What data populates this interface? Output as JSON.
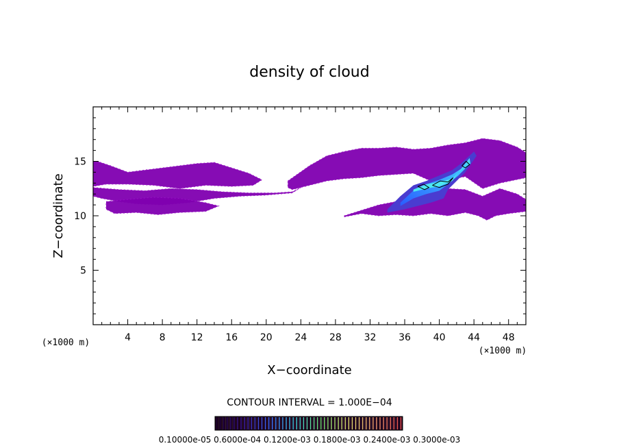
{
  "chart_data": {
    "type": "heatmap",
    "title": "density of cloud",
    "xlabel": "X−coordinate",
    "ylabel": "Z−coordinate",
    "x_unit_left": "(×1000 m)",
    "x_unit_right": "(×1000 m)",
    "xlim": [
      0,
      50
    ],
    "ylim": [
      0,
      20
    ],
    "x_ticks": [
      4,
      8,
      12,
      16,
      20,
      24,
      28,
      32,
      36,
      40,
      44,
      48
    ],
    "x_tick_labels": [
      "4",
      "8",
      "12",
      "16",
      "20",
      "24",
      "28",
      "32",
      "36",
      "40",
      "44",
      "48"
    ],
    "y_ticks": [
      5,
      10,
      15
    ],
    "y_tick_labels": [
      "5",
      "10",
      "15"
    ],
    "grid": false,
    "contour_interval_label": "CONTOUR INTERVAL = 1.000E−04",
    "colorbar_labels_text": "0.10000e-05 0.6000e-04 0.1200e-03 0.1800e-03 0.2400e-03 0.3000e-03",
    "colorbar_labels": [
      "0.10000e−05",
      "0.6000e−04",
      "0.1200e−03",
      "0.1800e−03",
      "0.2400e−03",
      "0.3000e−03"
    ],
    "colorbar_colors": [
      "#1a0030",
      "#3c1a9a",
      "#3a6cff",
      "#3fd0d8",
      "#6fe070",
      "#e0e070",
      "#f0a070",
      "#e85050"
    ],
    "cloud_regions": [
      {
        "name": "left-layer-top",
        "level": 0,
        "x": [
          0,
          0.5,
          2,
          4,
          6,
          9,
          12,
          14,
          16,
          18,
          19.5,
          18.5,
          16,
          13,
          10,
          7,
          4,
          1.5,
          0
        ],
        "z": [
          15,
          15,
          14.6,
          14,
          14.2,
          14.5,
          14.8,
          14.9,
          14.4,
          13.9,
          13.3,
          12.8,
          12.7,
          12.8,
          12.5,
          12.8,
          12.9,
          12.9,
          12.7
        ]
      },
      {
        "name": "left-layer-middle",
        "level": 0,
        "x": [
          0,
          3,
          6,
          9,
          12,
          15,
          18,
          21,
          23,
          24,
          23,
          20,
          17,
          14,
          11,
          8,
          5,
          3,
          1,
          0
        ],
        "z": [
          12.6,
          12.4,
          12.3,
          12.5,
          12.4,
          12.2,
          12.1,
          12.1,
          12.2,
          12.6,
          12.1,
          11.9,
          11.8,
          11.6,
          11.2,
          11.0,
          11.1,
          11.3,
          11.6,
          11.8
        ]
      },
      {
        "name": "left-layer-bottom",
        "level": 0,
        "x": [
          1.5,
          4,
          7,
          10,
          13,
          14.5,
          13,
          10,
          7.5,
          5,
          2.5,
          1.5
        ],
        "z": [
          11.3,
          11.5,
          11.7,
          11.6,
          11.2,
          10.9,
          10.4,
          10.3,
          10.1,
          10.3,
          10.2,
          10.6
        ]
      },
      {
        "name": "right-upper-band",
        "level": 0,
        "x": [
          22.5,
          25,
          27,
          29,
          31,
          33,
          35,
          37,
          39,
          41,
          43,
          45,
          47,
          49,
          50,
          50,
          47,
          45,
          43,
          41,
          39,
          37,
          35,
          33,
          31,
          29,
          27,
          25,
          23,
          22.5
        ],
        "z": [
          13.2,
          14.6,
          15.5,
          15.9,
          16.2,
          16.2,
          16.3,
          16.1,
          16.2,
          16.5,
          16.7,
          17.1,
          16.9,
          16.3,
          15.8,
          13.5,
          13.0,
          12.5,
          13.6,
          13.3,
          13.2,
          13.9,
          13.8,
          13.7,
          13.5,
          13.4,
          13.2,
          12.8,
          12.4,
          12.6
        ]
      },
      {
        "name": "right-lower-sheet",
        "level": 0,
        "x": [
          29,
          31,
          33,
          35,
          37,
          39,
          41,
          43,
          45,
          47,
          49,
          50,
          50,
          48,
          46.5,
          45.5,
          44.5,
          43,
          41,
          39,
          37,
          35,
          33,
          31,
          29
        ],
        "z": [
          10.0,
          10.5,
          11.0,
          11.3,
          11.6,
          11.9,
          12.5,
          12.4,
          11.8,
          12.5,
          12.0,
          11.5,
          10.4,
          10.2,
          10.0,
          9.6,
          10.0,
          10.3,
          10.0,
          10.2,
          10.0,
          10.1,
          10.0,
          10.2,
          9.9
        ]
      },
      {
        "name": "core-outer",
        "level": 1,
        "x": [
          34,
          35.5,
          37,
          38.5,
          40,
          41.5,
          42.5,
          44,
          44.3,
          43,
          42,
          41,
          40.5,
          39,
          38,
          36,
          34
        ],
        "z": [
          10.6,
          11.8,
          12.8,
          13.2,
          13.7,
          14.2,
          14.8,
          15.9,
          15.5,
          14.0,
          13.2,
          12.4,
          11.6,
          11.2,
          11.0,
          10.6,
          10.3
        ]
      },
      {
        "name": "core-mid",
        "level": 2,
        "x": [
          35.5,
          37,
          38.5,
          40,
          41.5,
          42.5,
          43.5,
          43.6,
          42.2,
          41,
          40,
          38.5,
          37,
          35.5
        ],
        "z": [
          11.2,
          12.3,
          12.9,
          13.3,
          13.8,
          14.3,
          15.3,
          14.8,
          13.7,
          12.9,
          12.3,
          12.0,
          11.6,
          10.9
        ]
      },
      {
        "name": "core-inner",
        "level": 3,
        "x": [
          37,
          38.5,
          40,
          41.5,
          42.5,
          43.3,
          42.8,
          41.5,
          40,
          38.5,
          37
        ],
        "z": [
          12.4,
          12.9,
          13.1,
          13.4,
          14.2,
          15.0,
          14.6,
          13.2,
          12.7,
          12.5,
          12.2
        ]
      }
    ],
    "contour_lines": [
      {
        "name": "contour-a",
        "x": [
          37.5,
          38.2,
          38.8,
          38.3,
          37.5
        ],
        "z": [
          12.7,
          12.9,
          12.6,
          12.4,
          12.7
        ]
      },
      {
        "name": "contour-b",
        "x": [
          39.2,
          40.1,
          41.0,
          41.6,
          41.0,
          40.0,
          39.2
        ],
        "z": [
          12.8,
          13.2,
          13.1,
          13.5,
          12.9,
          12.6,
          12.8
        ]
      },
      {
        "name": "contour-c",
        "x": [
          42.6,
          43.1,
          43.5,
          43.0,
          42.6
        ],
        "z": [
          14.6,
          15.0,
          14.7,
          14.4,
          14.6
        ]
      }
    ]
  }
}
